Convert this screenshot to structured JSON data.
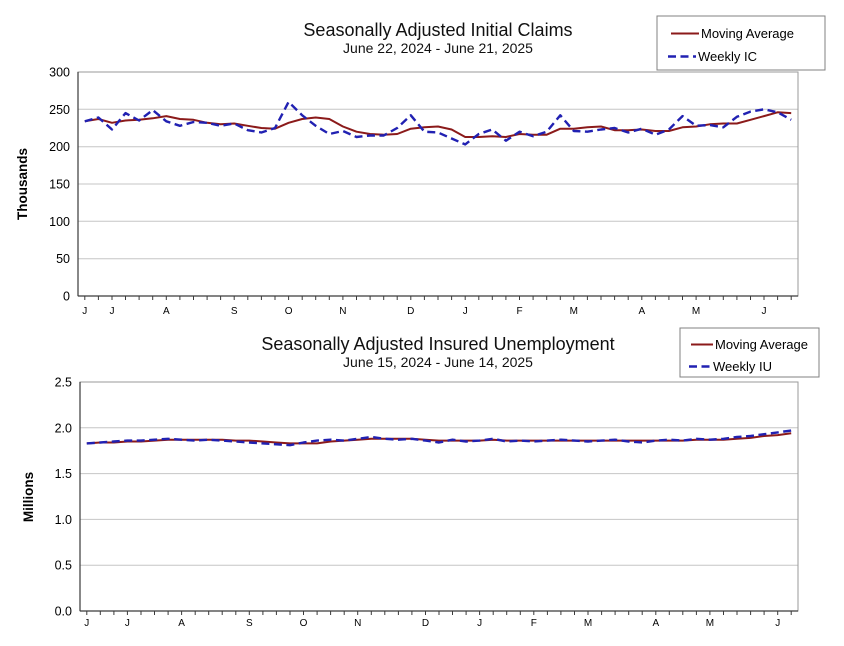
{
  "page": {
    "background": "#FFFFFF"
  },
  "colors": {
    "moving_average": "#8B1A1A",
    "weekly": "#2121B2",
    "gridline": "#C6C6C6",
    "plot_border": "#9A9A9A",
    "axis": "#3A3A3A",
    "text": "#000000"
  },
  "chart_data": [
    {
      "type": "line",
      "title": "Seasonally Adjusted Initial Claims",
      "subtitle": "June 22, 2024 - June 21, 2025",
      "ylabel": "Thousands",
      "xlabel": "",
      "ylim": [
        0,
        300
      ],
      "grid": true,
      "legend_position": "top-right",
      "weeks": 53,
      "y_tick_values": [
        0,
        50,
        100,
        150,
        200,
        250,
        300
      ],
      "y_tick_labels": [
        "0",
        "50",
        "100",
        "150",
        "200",
        "250",
        "300"
      ],
      "x_month_labels": [
        {
          "label": "J",
          "week": 1
        },
        {
          "label": "J",
          "week": 3
        },
        {
          "label": "A",
          "week": 7
        },
        {
          "label": "S",
          "week": 12
        },
        {
          "label": "O",
          "week": 16
        },
        {
          "label": "N",
          "week": 20
        },
        {
          "label": "D",
          "week": 25
        },
        {
          "label": "J",
          "week": 29
        },
        {
          "label": "F",
          "week": 33
        },
        {
          "label": "M",
          "week": 37
        },
        {
          "label": "A",
          "week": 42
        },
        {
          "label": "M",
          "week": 46
        },
        {
          "label": "J",
          "week": 51
        }
      ],
      "series": [
        {
          "name": "Moving Average",
          "color": "#8B1A1A",
          "style": "solid",
          "values": [
            234,
            237,
            232,
            235,
            236,
            238,
            241,
            237,
            236,
            232,
            230,
            231,
            228,
            225,
            224,
            232,
            237,
            239,
            237,
            227,
            220,
            217,
            216,
            217,
            224,
            226,
            227,
            223,
            213,
            213,
            214,
            213,
            217,
            216,
            216,
            224,
            224,
            226,
            227,
            222,
            222,
            223,
            221,
            221,
            226,
            227,
            230,
            231,
            231,
            236,
            241,
            246,
            245
          ]
        },
        {
          "name": "Weekly IC",
          "color": "#2121B2",
          "style": "dashed",
          "values": [
            234,
            239,
            223,
            245,
            235,
            249,
            234,
            228,
            233,
            232,
            228,
            231,
            222,
            219,
            225,
            260,
            242,
            228,
            217,
            221,
            213,
            215,
            215,
            225,
            242,
            220,
            219,
            211,
            203,
            217,
            223,
            208,
            220,
            214,
            220,
            242,
            221,
            220,
            223,
            225,
            219,
            224,
            216,
            223,
            241,
            228,
            229,
            226,
            240,
            247,
            250,
            246,
            236
          ]
        }
      ]
    },
    {
      "type": "line",
      "title": "Seasonally Adjusted Insured Unemployment",
      "subtitle": "June 15, 2024 - June 14, 2025",
      "ylabel": "Millions",
      "xlabel": "",
      "ylim": [
        0,
        2.5
      ],
      "grid": true,
      "legend_position": "top-right",
      "weeks": 53,
      "y_tick_values": [
        0,
        0.5,
        1.0,
        1.5,
        2.0,
        2.5
      ],
      "y_tick_labels": [
        "0.0",
        "0.5",
        "1.0",
        "1.5",
        "2.0",
        "2.5"
      ],
      "x_month_labels": [
        {
          "label": "J",
          "week": 1
        },
        {
          "label": "J",
          "week": 4
        },
        {
          "label": "A",
          "week": 8
        },
        {
          "label": "S",
          "week": 13
        },
        {
          "label": "O",
          "week": 17
        },
        {
          "label": "N",
          "week": 21
        },
        {
          "label": "D",
          "week": 26
        },
        {
          "label": "J",
          "week": 30
        },
        {
          "label": "F",
          "week": 34
        },
        {
          "label": "M",
          "week": 38
        },
        {
          "label": "A",
          "week": 43
        },
        {
          "label": "M",
          "week": 47
        },
        {
          "label": "J",
          "week": 52
        }
      ],
      "series": [
        {
          "name": "Moving Average",
          "color": "#8B1A1A",
          "style": "solid",
          "values": [
            1.83,
            1.84,
            1.84,
            1.85,
            1.85,
            1.86,
            1.87,
            1.87,
            1.87,
            1.87,
            1.87,
            1.86,
            1.86,
            1.85,
            1.84,
            1.83,
            1.83,
            1.83,
            1.85,
            1.86,
            1.87,
            1.88,
            1.88,
            1.88,
            1.88,
            1.87,
            1.86,
            1.86,
            1.86,
            1.86,
            1.87,
            1.86,
            1.86,
            1.86,
            1.86,
            1.86,
            1.86,
            1.86,
            1.86,
            1.86,
            1.86,
            1.86,
            1.86,
            1.86,
            1.86,
            1.87,
            1.87,
            1.87,
            1.88,
            1.89,
            1.91,
            1.92,
            1.94
          ]
        },
        {
          "name": "Weekly IU",
          "color": "#2121B2",
          "style": "dashed",
          "values": [
            1.83,
            1.84,
            1.85,
            1.86,
            1.86,
            1.87,
            1.88,
            1.87,
            1.86,
            1.87,
            1.86,
            1.85,
            1.84,
            1.83,
            1.82,
            1.81,
            1.84,
            1.86,
            1.87,
            1.86,
            1.88,
            1.9,
            1.88,
            1.87,
            1.88,
            1.86,
            1.84,
            1.87,
            1.85,
            1.86,
            1.88,
            1.85,
            1.86,
            1.85,
            1.86,
            1.87,
            1.86,
            1.85,
            1.86,
            1.87,
            1.85,
            1.84,
            1.86,
            1.87,
            1.86,
            1.88,
            1.87,
            1.88,
            1.9,
            1.91,
            1.93,
            1.95,
            1.97
          ]
        }
      ]
    }
  ]
}
